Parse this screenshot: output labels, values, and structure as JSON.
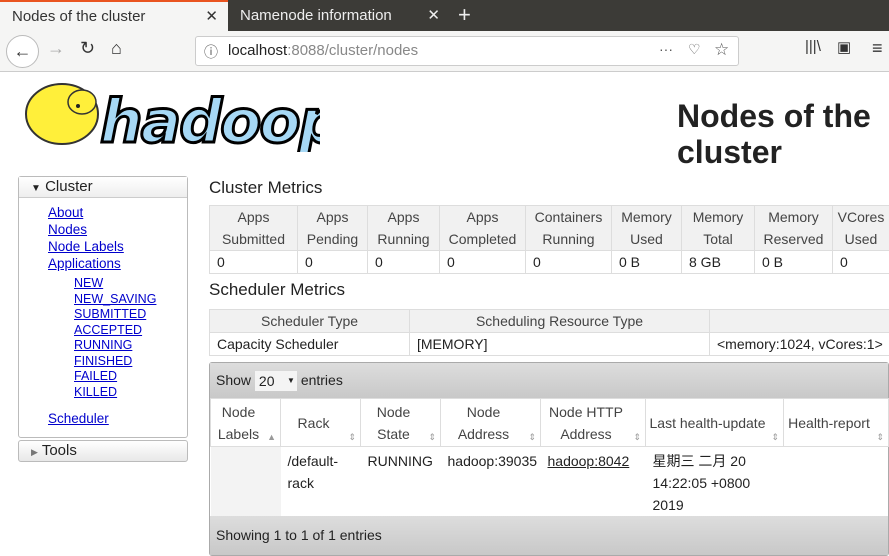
{
  "browser": {
    "tabs": [
      {
        "label": "Nodes of the cluster"
      },
      {
        "label": "Namenode information"
      }
    ],
    "url_host": "localhost",
    "url_path": ":8088/cluster/nodes"
  },
  "logo_text": "hadoop",
  "page_title": "Nodes of the cluster",
  "sidebar": {
    "cluster_label": "Cluster",
    "links": [
      "About",
      "Nodes",
      "Node Labels",
      "Applications"
    ],
    "app_states": [
      "NEW",
      "NEW_SAVING",
      "SUBMITTED",
      "ACCEPTED",
      "RUNNING",
      "FINISHED",
      "FAILED",
      "KILLED"
    ],
    "scheduler": "Scheduler",
    "tools_label": "Tools"
  },
  "cluster_metrics": {
    "title": "Cluster Metrics",
    "headers": [
      [
        "Apps",
        "Submitted"
      ],
      [
        "Apps",
        "Pending"
      ],
      [
        "Apps",
        "Running"
      ],
      [
        "Apps",
        "Completed"
      ],
      [
        "Containers",
        "Running"
      ],
      [
        "Memory",
        "Used"
      ],
      [
        "Memory",
        "Total"
      ],
      [
        "Memory",
        "Reserved"
      ],
      [
        "VCores",
        "Used"
      ]
    ],
    "values": [
      "0",
      "0",
      "0",
      "0",
      "0",
      "0 B",
      "8 GB",
      "0 B",
      "0"
    ]
  },
  "scheduler_metrics": {
    "title": "Scheduler Metrics",
    "headers": [
      "Scheduler Type",
      "Scheduling Resource Type",
      ""
    ],
    "values": [
      "Capacity Scheduler",
      "[MEMORY]",
      "<memory:1024, vCores:1>"
    ]
  },
  "nodes_table": {
    "show_label": "Show",
    "page_size": "20",
    "entries_label": "entries",
    "headers": [
      [
        "Node",
        "Labels"
      ],
      [
        "Rack"
      ],
      [
        "Node",
        "State"
      ],
      [
        "Node Address"
      ],
      [
        "Node HTTP",
        "Address"
      ],
      [
        "Last health-update"
      ],
      [
        "Health-report"
      ]
    ],
    "rows": [
      {
        "labels": "",
        "rack": "/default-rack",
        "state": "RUNNING",
        "address": "hadoop:39035",
        "http": "hadoop:8042",
        "last_health": "星期三 二月 20 14:22:05 +0800 2019",
        "health_report": ""
      }
    ],
    "footer": "Showing 1 to 1 of 1 entries"
  }
}
